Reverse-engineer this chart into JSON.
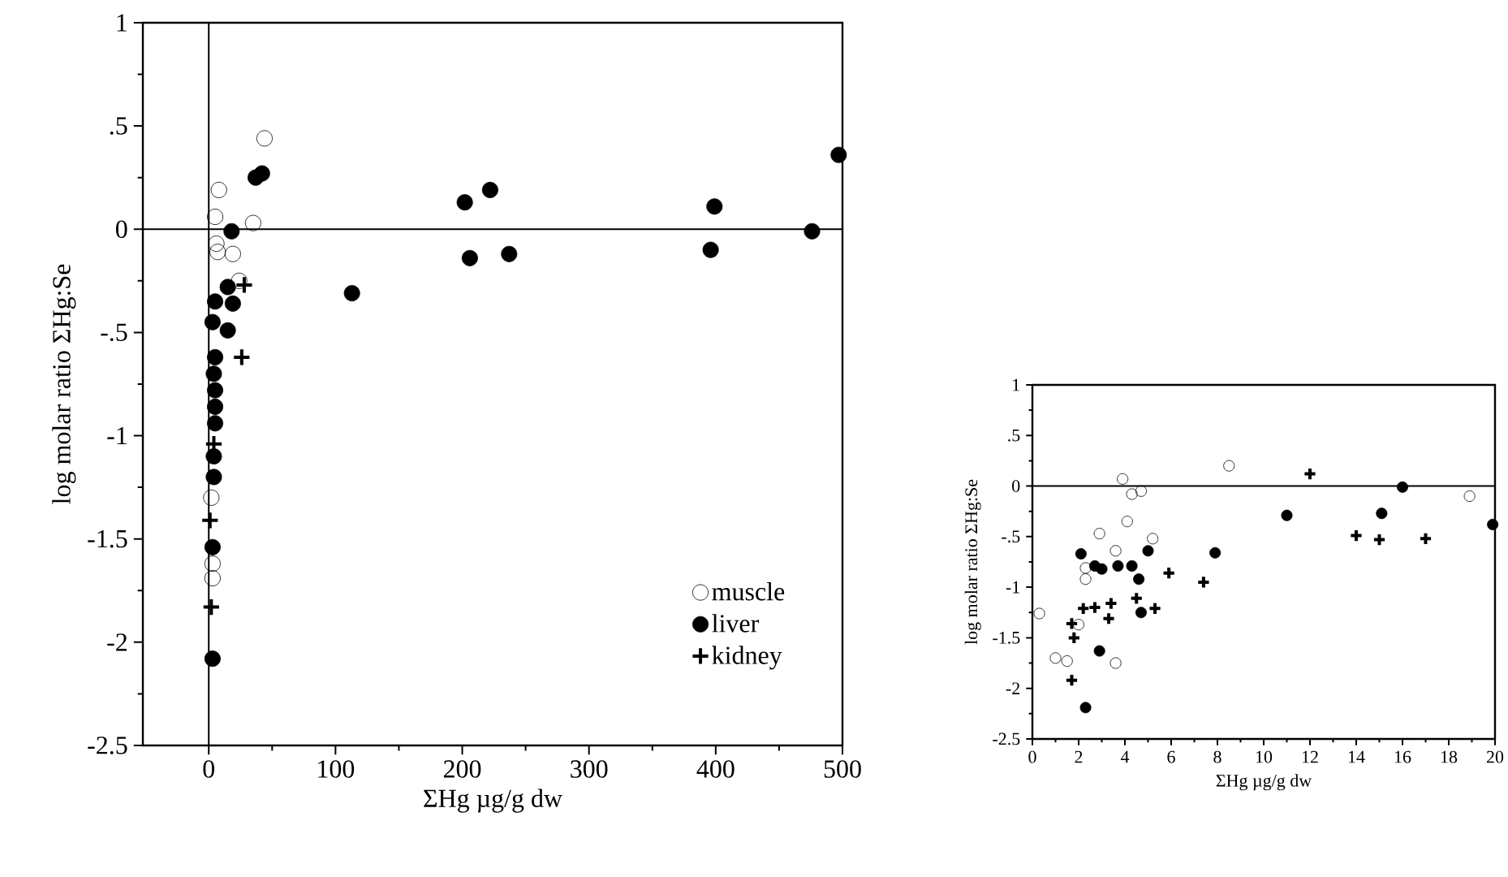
{
  "chart_data": [
    {
      "type": "scatter",
      "xlabel": "ΣHg µg/g dw",
      "ylabel": "log molar ratio ΣHg:Se",
      "xlim": [
        -52,
        500
      ],
      "ylim": [
        -2.5,
        1
      ],
      "xticks": [
        0,
        100,
        200,
        300,
        400,
        500
      ],
      "yticks": [
        {
          "value": -2.5,
          "label": "-2.5"
        },
        -2,
        -1.5,
        -1,
        {
          "value": -0.5,
          "label": "-.5"
        },
        0,
        {
          "value": 0.5,
          "label": ".5"
        },
        1
      ],
      "legend": "bottom right",
      "ref_lines": [
        {
          "axis": "y",
          "value": 0
        },
        {
          "axis": "x",
          "value": 0
        }
      ],
      "series": [
        {
          "name": "muscle",
          "color": "#000000",
          "marker": "circle",
          "x": [
            44,
            8,
            5,
            35,
            6,
            7,
            19,
            24,
            2,
            3,
            3
          ],
          "values": [
            0.44,
            0.19,
            0.06,
            0.03,
            -0.07,
            -0.11,
            -0.12,
            -0.25,
            -1.3,
            -1.62,
            -1.69
          ]
        },
        {
          "name": "liver",
          "color": "#000000",
          "marker": "filled circle",
          "x": [
            37,
            42,
            18,
            15,
            5,
            19,
            3,
            15,
            5,
            4,
            5,
            5,
            5,
            4,
            4,
            3,
            3,
            113,
            202,
            222,
            206,
            237,
            399,
            396,
            476,
            497
          ],
          "values": [
            0.25,
            0.27,
            -0.01,
            -0.28,
            -0.35,
            -0.36,
            -0.45,
            -0.49,
            -0.62,
            -0.7,
            -0.78,
            -0.86,
            -0.94,
            -1.1,
            -1.2,
            -1.54,
            -2.08,
            -0.31,
            0.13,
            0.19,
            -0.14,
            -0.12,
            0.11,
            -0.1,
            -0.01,
            0.36
          ]
        },
        {
          "name": "kidney",
          "color": "#000000",
          "marker": "cross",
          "x": [
            28,
            26,
            4,
            1,
            2
          ],
          "values": [
            -0.27,
            -0.62,
            -1.04,
            -1.41,
            -1.83
          ]
        }
      ]
    },
    {
      "type": "scatter",
      "xlabel": "ΣHg µg/g dw",
      "ylabel": "log molar ratio ΣHg:Se",
      "xlim": [
        0,
        20
      ],
      "ylim": [
        -2.5,
        1
      ],
      "xticks": [
        0,
        2,
        4,
        6,
        8,
        10,
        12,
        14,
        16,
        18,
        20
      ],
      "yticks": [
        {
          "value": -2.5,
          "label": "-2.5"
        },
        -2,
        -1.5,
        -1,
        {
          "value": -0.5,
          "label": "-.5"
        },
        0,
        {
          "value": 0.5,
          "label": ".5"
        },
        1
      ],
      "ref_lines": [
        {
          "axis": "y",
          "value": 0
        }
      ],
      "series": [
        {
          "color": "#000000",
          "marker": "circle",
          "x": [
            3.9,
            4.3,
            4.7,
            8.5,
            18.9,
            2.9,
            4.1,
            5.2,
            3.6,
            0.3,
            1.0,
            1.5,
            3.6,
            2.3,
            2.3,
            2.0
          ],
          "values": [
            0.07,
            -0.08,
            -0.05,
            0.2,
            -0.1,
            -0.47,
            -0.35,
            -0.52,
            -0.64,
            -1.26,
            -1.7,
            -1.73,
            -1.75,
            -0.81,
            -0.92,
            -1.37
          ]
        },
        {
          "color": "#000000",
          "marker": "filled circle",
          "x": [
            2.1,
            3.0,
            3.7,
            4.3,
            4.6,
            5.0,
            7.9,
            11.0,
            16.0,
            15.1,
            19.9,
            2.9,
            2.3,
            4.7,
            2.7
          ],
          "values": [
            -0.67,
            -0.82,
            -0.79,
            -0.79,
            -0.92,
            -0.64,
            -0.66,
            -0.29,
            -0.01,
            -0.27,
            -0.38,
            -1.63,
            -2.19,
            -1.25,
            -0.79
          ]
        },
        {
          "color": "#000000",
          "marker": "cross",
          "x": [
            12.0,
            14.0,
            15.0,
            17.0,
            7.4,
            5.9,
            5.3,
            4.5,
            3.4,
            3.3,
            2.2,
            1.7,
            1.8,
            1.7,
            2.7
          ],
          "values": [
            0.12,
            -0.49,
            -0.53,
            -0.52,
            -0.95,
            -0.86,
            -1.21,
            -1.11,
            -1.16,
            -1.31,
            -1.21,
            -1.36,
            -1.5,
            -1.92,
            -1.2
          ]
        }
      ]
    }
  ]
}
